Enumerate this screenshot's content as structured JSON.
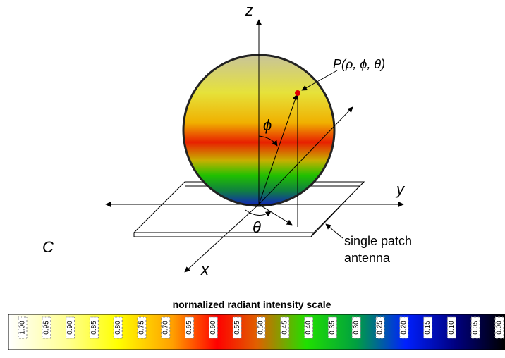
{
  "diagram": {
    "axes": {
      "z": "z",
      "y": "y",
      "x": "x"
    },
    "point_label": "P(ρ, ϕ, θ)",
    "phi": "ϕ",
    "theta": "θ",
    "panel_label": "C",
    "antenna_label": [
      "single patch",
      "antenna"
    ]
  },
  "scale": {
    "title": "normalized radiant intensity scale",
    "labels": [
      "1.00",
      "0.95",
      "0.90",
      "0.85",
      "0.80",
      "0.75",
      "0.70",
      "0.65",
      "0.60",
      "0.55",
      "0.50",
      "0.45",
      "0.40",
      "0.35",
      "0.30",
      "0.25",
      "0.20",
      "0.15",
      "0.10",
      "0.05",
      "0.00"
    ]
  }
}
